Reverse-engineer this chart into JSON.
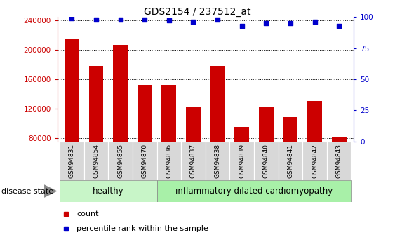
{
  "title": "GDS2154 / 237512_at",
  "samples": [
    "GSM94831",
    "GSM94854",
    "GSM94855",
    "GSM94870",
    "GSM94836",
    "GSM94837",
    "GSM94838",
    "GSM94839",
    "GSM94840",
    "GSM94841",
    "GSM94842",
    "GSM94843"
  ],
  "counts": [
    215000,
    178000,
    207000,
    152000,
    152000,
    122000,
    178000,
    95000,
    122000,
    108000,
    130000,
    82000
  ],
  "percentiles": [
    99,
    98,
    98,
    98,
    97,
    96,
    98,
    93,
    95,
    95,
    96,
    93
  ],
  "ylim_left": [
    75000,
    245000
  ],
  "ylim_right": [
    0,
    100
  ],
  "yticks_left": [
    80000,
    120000,
    160000,
    200000,
    240000
  ],
  "yticks_right": [
    0,
    25,
    50,
    75,
    100
  ],
  "bar_color": "#cc0000",
  "dot_color": "#0000cc",
  "healthy_count": 4,
  "disease_count": 8,
  "healthy_label": "healthy",
  "disease_label": "inflammatory dilated cardiomyopathy",
  "disease_state_label": "disease state",
  "legend_count": "count",
  "legend_percentile": "percentile rank within the sample",
  "healthy_color": "#c8f5c8",
  "disease_color": "#a8f0a8",
  "label_box_color": "#d8d8d8",
  "plot_bg": "#ffffff"
}
